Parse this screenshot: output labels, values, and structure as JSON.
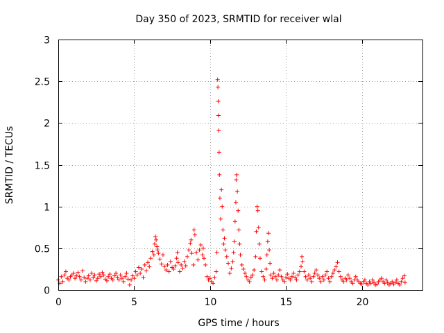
{
  "chart_data": {
    "type": "scatter",
    "title": "Day 350 of 2023, SRMTID for receiver wlal",
    "xlabel": "GPS time / hours",
    "ylabel": "SRMTID / TECUs",
    "xlim": [
      0,
      24
    ],
    "ylim": [
      0,
      3
    ],
    "x_ticks": [
      0,
      5,
      10,
      15,
      20
    ],
    "x_tick_labels": [
      "0",
      "5",
      "10",
      "15",
      "20"
    ],
    "y_ticks": [
      0,
      0.5,
      1,
      1.5,
      2,
      2.5,
      3
    ],
    "y_tick_labels": [
      "0",
      "0.5",
      "1",
      "1.5",
      "2",
      "2.5",
      "3"
    ],
    "grid": true,
    "marker": "+",
    "marker_color": "#ff0000",
    "series": [
      {
        "name": "SRMTID",
        "points": [
          [
            0.0,
            0.12
          ],
          [
            0.1,
            0.08
          ],
          [
            0.2,
            0.16
          ],
          [
            0.3,
            0.1
          ],
          [
            0.4,
            0.18
          ],
          [
            0.5,
            0.22
          ],
          [
            0.6,
            0.14
          ],
          [
            0.7,
            0.12
          ],
          [
            0.8,
            0.16
          ],
          [
            0.9,
            0.18
          ],
          [
            1.0,
            0.2
          ],
          [
            1.1,
            0.14
          ],
          [
            1.2,
            0.17
          ],
          [
            1.3,
            0.21
          ],
          [
            1.4,
            0.16
          ],
          [
            1.5,
            0.12
          ],
          [
            1.6,
            0.23
          ],
          [
            1.7,
            0.15
          ],
          [
            1.8,
            0.1
          ],
          [
            1.9,
            0.14
          ],
          [
            2.0,
            0.17
          ],
          [
            2.1,
            0.12
          ],
          [
            2.2,
            0.2
          ],
          [
            2.3,
            0.15
          ],
          [
            2.4,
            0.18
          ],
          [
            2.5,
            0.11
          ],
          [
            2.6,
            0.14
          ],
          [
            2.7,
            0.19
          ],
          [
            2.8,
            0.16
          ],
          [
            2.9,
            0.21
          ],
          [
            3.0,
            0.18
          ],
          [
            3.1,
            0.13
          ],
          [
            3.2,
            0.11
          ],
          [
            3.3,
            0.16
          ],
          [
            3.4,
            0.19
          ],
          [
            3.5,
            0.14
          ],
          [
            3.6,
            0.12
          ],
          [
            3.7,
            0.17
          ],
          [
            3.8,
            0.2
          ],
          [
            3.9,
            0.15
          ],
          [
            4.0,
            0.12
          ],
          [
            4.1,
            0.18
          ],
          [
            4.2,
            0.14
          ],
          [
            4.3,
            0.1
          ],
          [
            4.4,
            0.16
          ],
          [
            4.5,
            0.2
          ],
          [
            4.6,
            0.13
          ],
          [
            4.7,
            0.06
          ],
          [
            4.8,
            0.12
          ],
          [
            4.9,
            0.17
          ],
          [
            5.0,
            0.14
          ],
          [
            5.1,
            0.22
          ],
          [
            5.2,
            0.18
          ],
          [
            5.3,
            0.27
          ],
          [
            5.4,
            0.2
          ],
          [
            5.5,
            0.25
          ],
          [
            5.6,
            0.15
          ],
          [
            5.7,
            0.3
          ],
          [
            5.8,
            0.23
          ],
          [
            5.9,
            0.33
          ],
          [
            6.0,
            0.28
          ],
          [
            6.1,
            0.38
          ],
          [
            6.2,
            0.46
          ],
          [
            6.3,
            0.42
          ],
          [
            6.35,
            0.55
          ],
          [
            6.4,
            0.64
          ],
          [
            6.45,
            0.6
          ],
          [
            6.5,
            0.52
          ],
          [
            6.55,
            0.48
          ],
          [
            6.6,
            0.44
          ],
          [
            6.7,
            0.37
          ],
          [
            6.8,
            0.31
          ],
          [
            6.9,
            0.42
          ],
          [
            7.0,
            0.28
          ],
          [
            7.1,
            0.24
          ],
          [
            7.2,
            0.3
          ],
          [
            7.3,
            0.22
          ],
          [
            7.4,
            0.34
          ],
          [
            7.5,
            0.27
          ],
          [
            7.6,
            0.25
          ],
          [
            7.7,
            0.29
          ],
          [
            7.8,
            0.38
          ],
          [
            7.85,
            0.45
          ],
          [
            7.9,
            0.33
          ],
          [
            8.0,
            0.22
          ],
          [
            8.1,
            0.3
          ],
          [
            8.2,
            0.26
          ],
          [
            8.3,
            0.34
          ],
          [
            8.4,
            0.29
          ],
          [
            8.5,
            0.4
          ],
          [
            8.6,
            0.48
          ],
          [
            8.7,
            0.56
          ],
          [
            8.75,
            0.6
          ],
          [
            8.8,
            0.44
          ],
          [
            8.9,
            0.3
          ],
          [
            8.95,
            0.72
          ],
          [
            9.0,
            0.66
          ],
          [
            9.1,
            0.45
          ],
          [
            9.2,
            0.36
          ],
          [
            9.3,
            0.48
          ],
          [
            9.4,
            0.54
          ],
          [
            9.5,
            0.42
          ],
          [
            9.55,
            0.5
          ],
          [
            9.6,
            0.38
          ],
          [
            9.7,
            0.3
          ],
          [
            9.8,
            0.16
          ],
          [
            9.9,
            0.12
          ],
          [
            10.0,
            0.14
          ],
          [
            10.1,
            0.1
          ],
          [
            10.2,
            0.08
          ],
          [
            10.3,
            0.15
          ],
          [
            10.4,
            0.22
          ],
          [
            10.45,
            0.45
          ],
          [
            10.5,
            2.52
          ],
          [
            10.52,
            2.43
          ],
          [
            10.54,
            2.26
          ],
          [
            10.56,
            2.09
          ],
          [
            10.58,
            1.91
          ],
          [
            10.6,
            1.65
          ],
          [
            10.62,
            1.38
          ],
          [
            10.65,
            1.1
          ],
          [
            10.7,
            0.85
          ],
          [
            10.75,
            1.2
          ],
          [
            10.8,
            1.0
          ],
          [
            10.85,
            0.72
          ],
          [
            10.9,
            0.55
          ],
          [
            10.95,
            0.62
          ],
          [
            11.0,
            0.48
          ],
          [
            11.1,
            0.4
          ],
          [
            11.2,
            0.32
          ],
          [
            11.3,
            0.2
          ],
          [
            11.4,
            0.26
          ],
          [
            11.5,
            0.34
          ],
          [
            11.55,
            0.45
          ],
          [
            11.6,
            0.58
          ],
          [
            11.65,
            0.82
          ],
          [
            11.7,
            1.05
          ],
          [
            11.72,
            1.32
          ],
          [
            11.75,
            1.38
          ],
          [
            11.8,
            1.18
          ],
          [
            11.85,
            0.95
          ],
          [
            11.9,
            0.72
          ],
          [
            11.95,
            0.55
          ],
          [
            12.0,
            0.42
          ],
          [
            12.1,
            0.3
          ],
          [
            12.2,
            0.25
          ],
          [
            12.3,
            0.2
          ],
          [
            12.4,
            0.16
          ],
          [
            12.5,
            0.12
          ],
          [
            12.6,
            0.1
          ],
          [
            12.7,
            0.15
          ],
          [
            12.8,
            0.18
          ],
          [
            12.9,
            0.24
          ],
          [
            13.0,
            0.4
          ],
          [
            13.05,
            0.7
          ],
          [
            13.1,
            1.0
          ],
          [
            13.15,
            0.95
          ],
          [
            13.2,
            0.75
          ],
          [
            13.25,
            0.55
          ],
          [
            13.3,
            0.38
          ],
          [
            13.4,
            0.22
          ],
          [
            13.5,
            0.16
          ],
          [
            13.6,
            0.12
          ],
          [
            13.7,
            0.25
          ],
          [
            13.75,
            0.42
          ],
          [
            13.8,
            0.58
          ],
          [
            13.85,
            0.68
          ],
          [
            13.9,
            0.48
          ],
          [
            13.95,
            0.32
          ],
          [
            14.0,
            0.18
          ],
          [
            14.1,
            0.14
          ],
          [
            14.2,
            0.2
          ],
          [
            14.3,
            0.16
          ],
          [
            14.4,
            0.12
          ],
          [
            14.5,
            0.18
          ],
          [
            14.6,
            0.24
          ],
          [
            14.7,
            0.16
          ],
          [
            14.8,
            0.12
          ],
          [
            14.9,
            0.1
          ],
          [
            15.0,
            0.15
          ],
          [
            15.1,
            0.19
          ],
          [
            15.2,
            0.14
          ],
          [
            15.3,
            0.12
          ],
          [
            15.4,
            0.16
          ],
          [
            15.5,
            0.2
          ],
          [
            15.6,
            0.15
          ],
          [
            15.7,
            0.12
          ],
          [
            15.8,
            0.18
          ],
          [
            15.9,
            0.22
          ],
          [
            16.0,
            0.28
          ],
          [
            16.05,
            0.4
          ],
          [
            16.1,
            0.34
          ],
          [
            16.2,
            0.22
          ],
          [
            16.3,
            0.16
          ],
          [
            16.4,
            0.12
          ],
          [
            16.5,
            0.18
          ],
          [
            16.6,
            0.14
          ],
          [
            16.7,
            0.1
          ],
          [
            16.8,
            0.16
          ],
          [
            16.9,
            0.2
          ],
          [
            17.0,
            0.24
          ],
          [
            17.1,
            0.18
          ],
          [
            17.2,
            0.14
          ],
          [
            17.3,
            0.1
          ],
          [
            17.4,
            0.16
          ],
          [
            17.5,
            0.12
          ],
          [
            17.6,
            0.18
          ],
          [
            17.7,
            0.22
          ],
          [
            17.8,
            0.14
          ],
          [
            17.9,
            0.1
          ],
          [
            18.0,
            0.16
          ],
          [
            18.1,
            0.2
          ],
          [
            18.2,
            0.24
          ],
          [
            18.3,
            0.28
          ],
          [
            18.4,
            0.33
          ],
          [
            18.5,
            0.22
          ],
          [
            18.6,
            0.16
          ],
          [
            18.7,
            0.12
          ],
          [
            18.8,
            0.1
          ],
          [
            18.9,
            0.14
          ],
          [
            19.0,
            0.12
          ],
          [
            19.1,
            0.18
          ],
          [
            19.2,
            0.14
          ],
          [
            19.3,
            0.1
          ],
          [
            19.4,
            0.08
          ],
          [
            19.5,
            0.12
          ],
          [
            19.6,
            0.16
          ],
          [
            19.7,
            0.12
          ],
          [
            19.8,
            0.1
          ],
          [
            19.9,
            0.08
          ],
          [
            20.0,
            0.07
          ],
          [
            20.1,
            0.1
          ],
          [
            20.2,
            0.12
          ],
          [
            20.3,
            0.08
          ],
          [
            20.4,
            0.06
          ],
          [
            20.5,
            0.1
          ],
          [
            20.6,
            0.08
          ],
          [
            20.7,
            0.12
          ],
          [
            20.8,
            0.09
          ],
          [
            20.9,
            0.06
          ],
          [
            21.0,
            0.07
          ],
          [
            21.1,
            0.1
          ],
          [
            21.2,
            0.12
          ],
          [
            21.3,
            0.14
          ],
          [
            21.4,
            0.1
          ],
          [
            21.5,
            0.08
          ],
          [
            21.6,
            0.12
          ],
          [
            21.7,
            0.09
          ],
          [
            21.8,
            0.06
          ],
          [
            21.9,
            0.08
          ],
          [
            22.0,
            0.1
          ],
          [
            22.1,
            0.07
          ],
          [
            22.2,
            0.09
          ],
          [
            22.3,
            0.12
          ],
          [
            22.4,
            0.08
          ],
          [
            22.5,
            0.06
          ],
          [
            22.6,
            0.1
          ],
          [
            22.7,
            0.14
          ],
          [
            22.8,
            0.17
          ],
          [
            22.85,
            0.09
          ]
        ]
      }
    ]
  }
}
